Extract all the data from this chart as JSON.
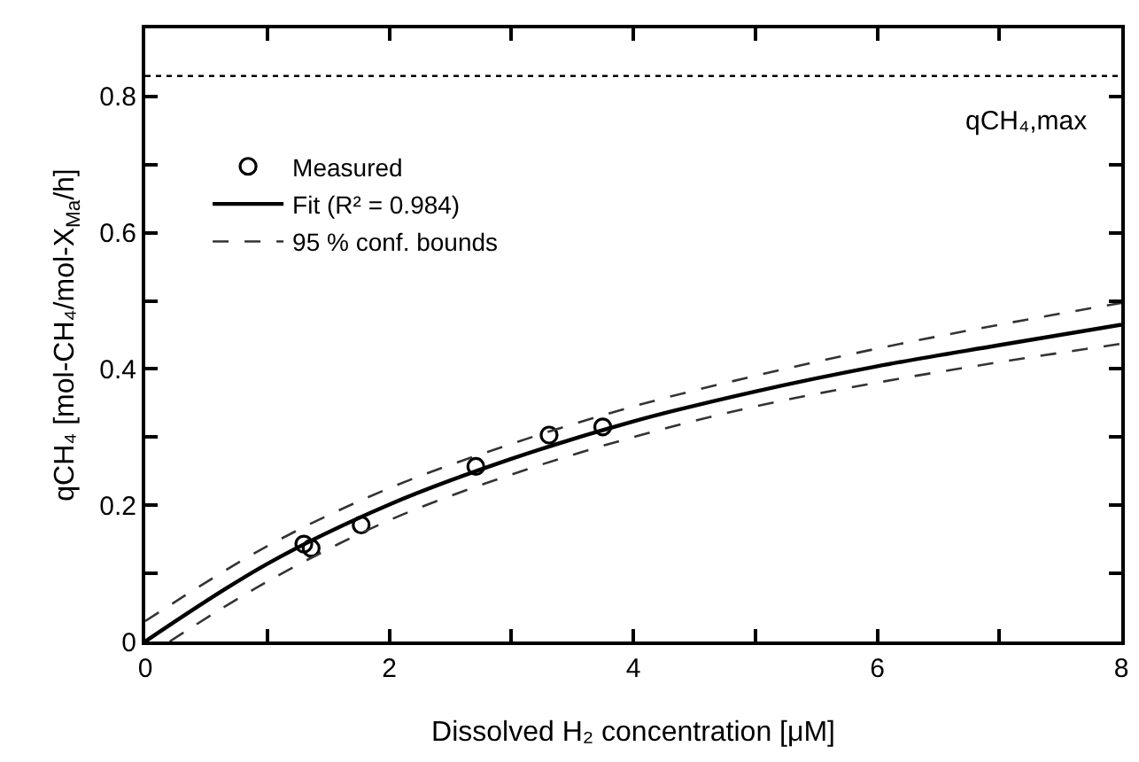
{
  "chart_data": {
    "type": "scatter",
    "xlabel": "Dissolved H₂ concentration [μM]",
    "ylabel": "qCH₄ [mol-CH₄/mol-X$_{Ma}$/h]",
    "xlim": [
      0,
      8
    ],
    "ylim": [
      0,
      0.9
    ],
    "xticks": [
      0,
      {
        "value": 1,
        "label": null
      },
      2,
      {
        "value": 3,
        "label": null
      },
      4,
      {
        "value": 5,
        "label": null
      },
      6,
      {
        "value": 7,
        "label": null
      },
      8
    ],
    "yticks": [
      0,
      {
        "value": 0.1,
        "label": null
      },
      0.2,
      {
        "value": 0.3,
        "label": null
      },
      0.4,
      {
        "value": 0.5,
        "label": null
      },
      0.6,
      {
        "value": 0.7,
        "label": null
      },
      0.8
    ],
    "grid": false,
    "legend": "top left",
    "ref_lines": [
      {
        "axis": "y",
        "value": 0.83,
        "label": "qCH₄,max",
        "color": "#000000",
        "line_style": "dotted"
      }
    ],
    "series": [
      {
        "name": "Measured",
        "marker": "circle",
        "color": "#000000",
        "x": [
          1.3,
          1.36,
          1.77,
          2.71,
          3.31,
          3.75
        ],
        "values": [
          0.143,
          0.137,
          0.171,
          0.257,
          0.303,
          0.315
        ]
      },
      {
        "name": "Fit (R² = 0.984)",
        "type": "line",
        "marker": "none",
        "color": "#000000",
        "line_style": "solid",
        "x": [
          0,
          1,
          2,
          3,
          4,
          5,
          6,
          7,
          8
        ],
        "values": [
          0,
          0.114,
          0.201,
          0.268,
          0.323,
          0.367,
          0.404,
          0.435,
          0.465
        ]
      },
      {
        "name": "95 % conf. bounds",
        "type": "line",
        "marker": "none",
        "color": "#333333",
        "line_style": "dashed",
        "x": [
          0,
          1,
          2,
          3,
          4,
          5,
          6,
          7,
          8
        ],
        "values": [
          0.03,
          0.14,
          0.225,
          0.29,
          0.345,
          0.39,
          0.43,
          0.465,
          0.497
        ]
      },
      {
        "type": "line",
        "marker": "none",
        "color": "#333333",
        "line_style": "dashed",
        "x": [
          0.2,
          1,
          2,
          3,
          4,
          5,
          6,
          7,
          8
        ],
        "values": [
          0,
          0.088,
          0.178,
          0.245,
          0.3,
          0.345,
          0.38,
          0.41,
          0.437
        ]
      }
    ]
  }
}
